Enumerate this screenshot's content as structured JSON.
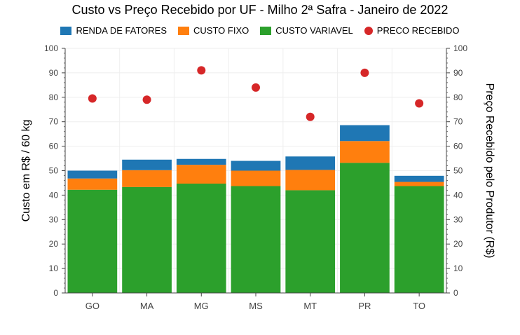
{
  "chart_data": {
    "type": "bar",
    "title": "Custo vs Preço Recebido por UF - Milho 2ª Safra - Janeiro de 2022",
    "ylabel": "Custo em R$ / 60 kg",
    "y2label": "Preço Recebido pelo Produtor (R$)",
    "ylim": [
      0,
      100
    ],
    "y2lim": [
      0,
      100
    ],
    "yticks": [
      "0",
      "10",
      "20",
      "30",
      "40",
      "50",
      "60",
      "70",
      "80",
      "90",
      "100"
    ],
    "categories": [
      "GO",
      "MA",
      "MG",
      "MS",
      "MT",
      "PR",
      "TO"
    ],
    "stacked": true,
    "grid": true,
    "legend_position": "top",
    "series": [
      {
        "name": "CUSTO VARIAVEL",
        "color": "#2ca02c",
        "values": [
          42.2,
          43.3,
          44.7,
          43.7,
          42.0,
          53.2,
          43.7
        ]
      },
      {
        "name": "CUSTO FIXO",
        "color": "#ff7f0e",
        "values": [
          4.6,
          6.9,
          7.7,
          6.3,
          8.3,
          8.9,
          1.7
        ]
      },
      {
        "name": "RENDA DE FATORES",
        "color": "#1f77b4",
        "values": [
          3.2,
          4.3,
          2.4,
          4.0,
          5.5,
          6.5,
          2.5
        ]
      }
    ],
    "scatter": {
      "name": "PRECO RECEBIDO",
      "color": "#d62728",
      "values": [
        79.5,
        79.0,
        91.0,
        84.0,
        72.0,
        90.0,
        77.5
      ]
    },
    "legend_order": [
      "RENDA DE FATORES",
      "CUSTO FIXO",
      "CUSTO VARIAVEL",
      "PRECO RECEBIDO"
    ]
  }
}
